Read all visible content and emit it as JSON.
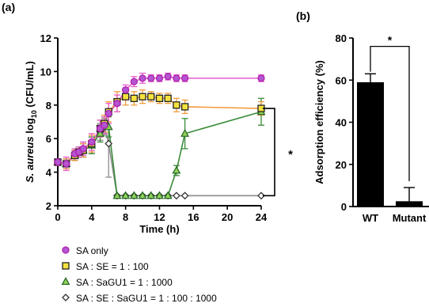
{
  "chart_data": [
    {
      "panel": "(a)",
      "type": "line",
      "xlabel": "Time (h)",
      "ylabel_italic": "S. aureus",
      "ylabel_pre": " log",
      "ylabel_sub": "10",
      "ylabel_post": " (CFU/mL)",
      "xlim": [
        0,
        24
      ],
      "ylim": [
        2,
        12
      ],
      "xticks": [
        0,
        4,
        8,
        12,
        16,
        20,
        24
      ],
      "yticks": [
        2,
        4,
        6,
        8,
        10,
        12
      ],
      "significance": "*",
      "series": [
        {
          "name": "SA only",
          "color": "#e75ec9",
          "fill": "#b455d1",
          "marker": "circle",
          "x": [
            0,
            1,
            2,
            2.5,
            3,
            4,
            5,
            5.5,
            6,
            7,
            8,
            9,
            10,
            11,
            12,
            13,
            14,
            15,
            24
          ],
          "y": [
            4.6,
            4.5,
            5.1,
            5.2,
            5.4,
            5.8,
            6.6,
            6.8,
            7.5,
            8.1,
            8.9,
            9.4,
            9.6,
            9.6,
            9.6,
            9.7,
            9.6,
            9.6,
            9.6
          ],
          "err": [
            0.2,
            0.4,
            0.3,
            0.3,
            0.4,
            0.5,
            0.5,
            0.5,
            0.6,
            0.5,
            0.3,
            0.3,
            0.3,
            0.2,
            0.2,
            0.2,
            0.2,
            0.2,
            0.2
          ]
        },
        {
          "name": "SA : SE = 1 : 100",
          "color": "#f39b3d",
          "fill": "#f4e23e",
          "marker": "square",
          "x": [
            0,
            1,
            2,
            2.5,
            3,
            4,
            5,
            5.5,
            6,
            7,
            8,
            9,
            10,
            11,
            12,
            13,
            14,
            15,
            24
          ],
          "y": [
            4.6,
            4.5,
            5.0,
            5.2,
            5.3,
            5.7,
            6.6,
            6.9,
            7.6,
            8.2,
            8.5,
            8.4,
            8.5,
            8.5,
            8.4,
            8.4,
            8.0,
            7.9,
            7.8
          ],
          "err": [
            0.2,
            0.3,
            0.3,
            0.3,
            0.4,
            0.5,
            0.5,
            0.5,
            0.6,
            0.6,
            0.5,
            0.4,
            0.4,
            0.3,
            0.3,
            0.3,
            0.4,
            0.4,
            0.4
          ]
        },
        {
          "name": "SA : SaGU1 = 1 : 1000",
          "color": "#3a8b3a",
          "fill": "#93d35a",
          "marker": "triangle",
          "x": [
            0,
            1,
            2,
            2.5,
            3,
            4,
            5,
            5.5,
            6,
            7,
            8,
            9,
            10,
            11,
            12,
            13,
            14,
            15,
            24
          ],
          "y": [
            4.6,
            4.5,
            5.0,
            5.2,
            5.3,
            5.6,
            6.3,
            6.8,
            6.7,
            2.6,
            2.6,
            2.6,
            2.6,
            2.6,
            2.6,
            2.6,
            4.1,
            6.3,
            7.6
          ],
          "err": [
            0.2,
            0.3,
            0.3,
            0.3,
            0.4,
            0.5,
            0.5,
            0.5,
            0.6,
            0,
            0,
            0,
            0,
            0,
            0,
            0,
            0.3,
            0.9,
            0.8
          ]
        },
        {
          "name": "SA : SE : SaGU1 = 1 : 100 : 1000",
          "color": "#8c8c8c",
          "fill": "#ffffff",
          "marker": "diamond",
          "x": [
            0,
            1,
            2,
            2.5,
            3,
            4,
            5,
            5.5,
            6,
            7,
            8,
            9,
            10,
            11,
            12,
            13,
            14,
            15,
            24
          ],
          "y": [
            4.6,
            4.5,
            5.0,
            5.2,
            5.3,
            5.6,
            6.4,
            6.7,
            5.7,
            2.6,
            2.6,
            2.6,
            2.6,
            2.6,
            2.6,
            2.6,
            2.6,
            2.6,
            2.6
          ],
          "err": [
            0.2,
            0.3,
            0.3,
            0.3,
            0.4,
            0.5,
            0.5,
            0.5,
            2.0,
            0,
            0,
            0,
            0,
            0,
            0,
            0,
            0,
            0,
            0
          ]
        }
      ]
    },
    {
      "panel": "(b)",
      "type": "bar",
      "categories": [
        "WT",
        "Mutant"
      ],
      "values": [
        59,
        2.5
      ],
      "err": [
        4,
        6.5
      ],
      "color": "#000000",
      "ylabel": "Adsorption efficiency (%)",
      "ylim": [
        0,
        80
      ],
      "yticks": [
        0,
        20,
        40,
        60,
        80
      ],
      "significance": "*"
    }
  ]
}
